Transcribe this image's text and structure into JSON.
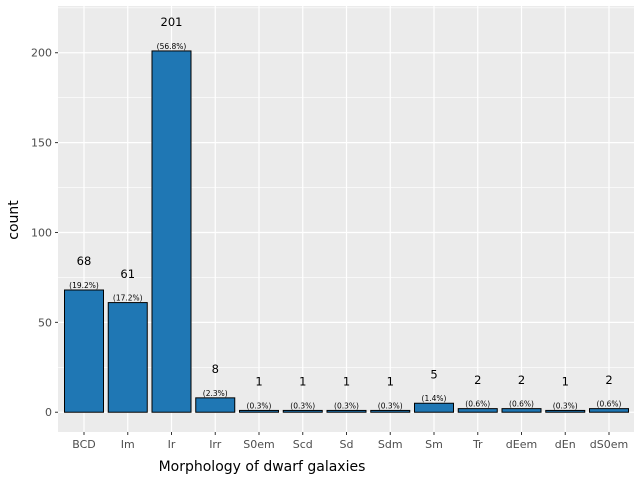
{
  "chart_data": {
    "type": "bar",
    "xlabel": "Morphology of dwarf galaxies",
    "ylabel": "count",
    "categories": [
      "BCD",
      "Im",
      "Ir",
      "Irr",
      "S0em",
      "Scd",
      "Sd",
      "Sdm",
      "Sm",
      "Tr",
      "dEem",
      "dEn",
      "dS0em"
    ],
    "values": [
      68,
      61,
      201,
      8,
      1,
      1,
      1,
      1,
      5,
      2,
      2,
      1,
      2
    ],
    "count_labels": [
      "68",
      "61",
      "201",
      "8",
      "1",
      "1",
      "1",
      "1",
      "5",
      "2",
      "2",
      "1",
      "2"
    ],
    "percent_labels": [
      "(19.2%)",
      "(17.2%)",
      "(56.8%)",
      "(2.3%)",
      "(0.3%)",
      "(0.3%)",
      "(0.3%)",
      "(0.3%)",
      "(1.4%)",
      "(0.6%)",
      "(0.6%)",
      "(0.3%)",
      "(0.6%)"
    ],
    "yticks": [
      0,
      50,
      100,
      150,
      200
    ],
    "ytick_labels": [
      "0",
      "50",
      "100",
      "150",
      "200"
    ],
    "ylim": [
      -11,
      226
    ],
    "grid": true,
    "legend": "none",
    "colors": {
      "bar_fill": "#1f77b4",
      "bar_edge": "#000000",
      "panel_background": "#ebebeb",
      "grid_major": "#ffffff"
    }
  }
}
